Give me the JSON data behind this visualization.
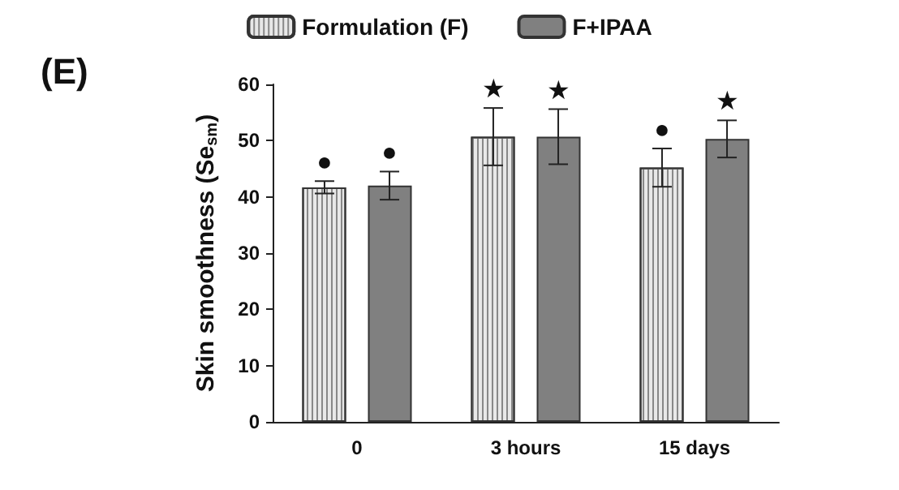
{
  "chart_data": {
    "type": "bar",
    "title": "(E)",
    "ylabel": "Skin smoothness (Se$_{sm}$)",
    "categories": [
      "0",
      "3 hours",
      "15 days"
    ],
    "series": [
      {
        "name": "Formulation (F)",
        "color": "#e8e8e8",
        "values": [
          41.7,
          50.7,
          45.2
        ],
        "errors": [
          1.1,
          5.1,
          3.4
        ],
        "value_labels": [
          "●",
          "★",
          "●"
        ]
      },
      {
        "name": "F+IPAA",
        "color": "#808080",
        "values": [
          42.0,
          50.7,
          50.3
        ],
        "errors": [
          2.5,
          4.9,
          3.3
        ],
        "value_labels": [
          "●",
          "★",
          "★"
        ]
      }
    ],
    "ylim": [
      0,
      60
    ],
    "yticks": [
      0,
      10,
      20,
      30,
      40,
      50,
      60
    ],
    "grid": false,
    "legend": "top"
  }
}
